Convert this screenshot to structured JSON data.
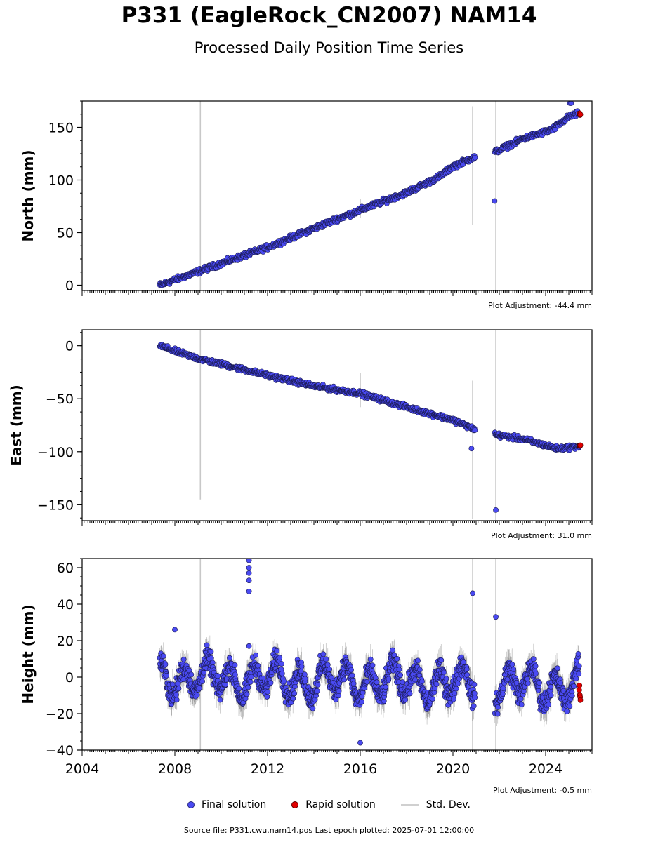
{
  "title": "P331 (EagleRock_CN2007) NAM14",
  "subtitle": "Processed Daily Position Time Series",
  "footer": "Source file: P331.cwu.nam14.pos  Last epoch plotted: 2025-07-01 12:00:00",
  "legend": {
    "final": "Final solution",
    "rapid": "Rapid solution",
    "std": "Std. Dev."
  },
  "colors": {
    "final_fill": "#4a4af2",
    "final_edge": "#1a1a50",
    "rapid_fill": "#e00000",
    "std_line": "#c8c8c8",
    "noise_band": "#5a5a5a"
  },
  "chart_data": [
    {
      "type": "scatter",
      "ylabel": "North (mm)",
      "adjustment": "Plot Adjustment: -44.4 mm",
      "xlim": [
        2004.0,
        2026.0
      ],
      "ylim": [
        -5,
        175
      ],
      "yticks": [
        0,
        50,
        100,
        150
      ],
      "series": [
        {
          "name": "Final solution",
          "trend": [
            [
              2007.35,
              0
            ],
            [
              2009.0,
              13
            ],
            [
              2012.0,
              36
            ],
            [
              2015.0,
              63
            ],
            [
              2018.0,
              88
            ],
            [
              2019.4,
              103
            ],
            [
              2020.0,
              113
            ],
            [
              2020.85,
              121
            ],
            [
              2021.85,
              127
            ],
            [
              2023.0,
              139
            ],
            [
              2024.3,
              148
            ],
            [
              2025.0,
              160
            ],
            [
              2025.4,
              163
            ]
          ],
          "noise": 2.0,
          "outliers": [
            [
              2021.8,
              80
            ],
            [
              2025.05,
              173
            ],
            [
              2025.1,
              173
            ]
          ],
          "error_bars": [
            [
              2009.1,
              -5,
              175
            ],
            [
              2016.0,
              64,
              82
            ],
            [
              2020.85,
              57,
              170
            ],
            [
              2021.85,
              -5,
              175
            ]
          ]
        },
        {
          "name": "Rapid solution",
          "trend": [
            [
              2025.45,
              163
            ],
            [
              2025.5,
              162
            ]
          ]
        }
      ]
    },
    {
      "type": "scatter",
      "ylabel": "East (mm)",
      "adjustment": "Plot Adjustment: 31.0 mm",
      "xlim": [
        2004.0,
        2026.0
      ],
      "ylim": [
        -165,
        15
      ],
      "yticks": [
        0,
        -50,
        -100,
        -150
      ],
      "series": [
        {
          "name": "Final solution",
          "trend": [
            [
              2007.35,
              0
            ],
            [
              2008.0,
              -5
            ],
            [
              2009.0,
              -12
            ],
            [
              2012.0,
              -28
            ],
            [
              2014.0,
              -38
            ],
            [
              2016.0,
              -45
            ],
            [
              2018.0,
              -58
            ],
            [
              2020.0,
              -70
            ],
            [
              2020.85,
              -78
            ],
            [
              2021.85,
              -84
            ],
            [
              2023.0,
              -88
            ],
            [
              2024.5,
              -97
            ],
            [
              2025.45,
              -95
            ]
          ],
          "noise": 1.8,
          "outliers": [
            [
              2020.8,
              -97
            ],
            [
              2021.85,
              -155
            ]
          ],
          "error_bars": [
            [
              2009.1,
              -145,
              15
            ],
            [
              2016.0,
              -58,
              -26
            ],
            [
              2020.85,
              -163,
              -33
            ],
            [
              2021.85,
              -165,
              15
            ]
          ]
        },
        {
          "name": "Rapid solution",
          "trend": [
            [
              2025.45,
              -95
            ],
            [
              2025.5,
              -94
            ]
          ]
        }
      ]
    },
    {
      "type": "scatter",
      "ylabel": "Height (mm)",
      "adjustment": "Plot Adjustment: -0.5 mm",
      "xlabel_ticks": [
        "2004",
        "2008",
        "2012",
        "2016",
        "2020",
        "2024"
      ],
      "xticks": [
        2004,
        2008,
        2012,
        2016,
        2020,
        2024
      ],
      "xlim": [
        2004.0,
        2026.0
      ],
      "ylim": [
        -40,
        65
      ],
      "yticks": [
        60,
        40,
        20,
        0,
        -20,
        -40
      ],
      "series": [
        {
          "name": "Final solution",
          "trend": [
            [
              2007.35,
              0
            ],
            [
              2025.45,
              -5
            ]
          ],
          "seasonal_amp": 8,
          "noise": 5,
          "outliers": [
            [
              2011.2,
              64
            ],
            [
              2011.2,
              60
            ],
            [
              2011.2,
              57
            ],
            [
              2011.2,
              53
            ],
            [
              2011.2,
              47
            ],
            [
              2011.2,
              17
            ],
            [
              2016.0,
              -36
            ],
            [
              2020.85,
              46
            ],
            [
              2021.85,
              33
            ],
            [
              2008.0,
              26
            ]
          ],
          "error_bars": [
            [
              2009.1,
              -40,
              65
            ],
            [
              2020.85,
              -40,
              65
            ],
            [
              2021.85,
              -40,
              65
            ]
          ]
        },
        {
          "name": "Rapid solution",
          "trend": [
            [
              2025.45,
              -5
            ],
            [
              2025.5,
              -13
            ]
          ]
        }
      ]
    }
  ]
}
